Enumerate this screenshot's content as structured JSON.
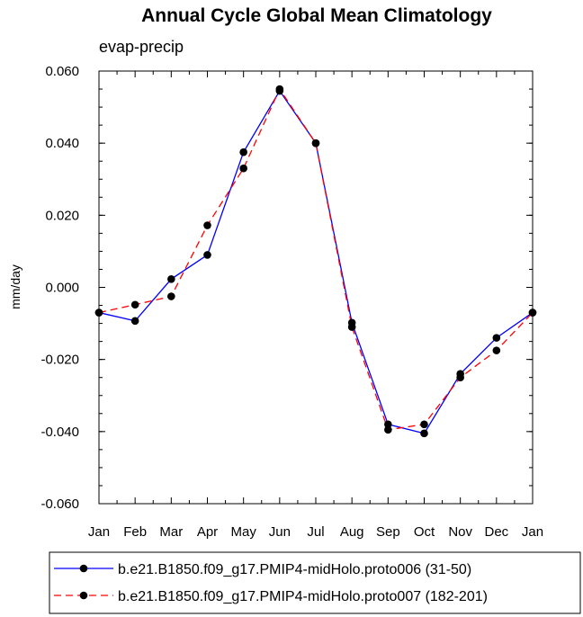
{
  "chart_data": {
    "type": "line",
    "title": "Annual Cycle Global Mean Climatology",
    "subtitle": "evap-precip",
    "xlabel": "",
    "ylabel": "mm/day",
    "categories": [
      "Jan",
      "Feb",
      "Mar",
      "Apr",
      "May",
      "Jun",
      "Jul",
      "Aug",
      "Sep",
      "Oct",
      "Nov",
      "Dec",
      "Jan"
    ],
    "ylim": [
      -0.06,
      0.06
    ],
    "yticks": [
      0.06,
      0.04,
      0.02,
      0.0,
      -0.02,
      -0.04,
      -0.06
    ],
    "ytick_labels": [
      "0.060",
      "0.040",
      "0.020",
      "0.000",
      "-0.020",
      "-0.040",
      "-0.060"
    ],
    "grid": false,
    "legend_position": "bottom",
    "series": [
      {
        "name": "b.e21.B1850.f09_g17.PMIP4-midHolo.proto006 (31-50)",
        "color": "#0000ff",
        "dash": "solid",
        "values": [
          -0.007,
          -0.0093,
          0.0023,
          0.009,
          0.0375,
          0.0545,
          0.04,
          -0.0098,
          -0.038,
          -0.0405,
          -0.024,
          -0.014,
          -0.007
        ]
      },
      {
        "name": "b.e21.B1850.f09_g17.PMIP4-midHolo.proto007 (182-201)",
        "color": "#ff0000",
        "dash": "dashed",
        "values": [
          -0.007,
          -0.0048,
          -0.0025,
          0.0172,
          0.033,
          0.055,
          0.04,
          -0.011,
          -0.0395,
          -0.038,
          -0.025,
          -0.0175,
          -0.007
        ]
      }
    ]
  }
}
